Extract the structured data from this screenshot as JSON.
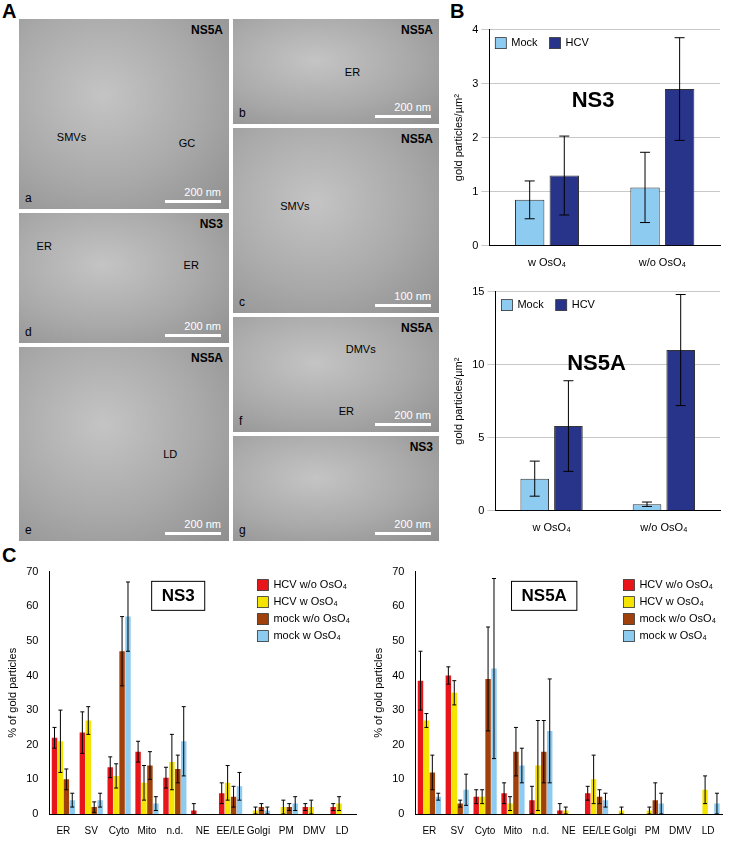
{
  "panel_labels": [
    "A",
    "B",
    "C"
  ],
  "panel_a": {
    "images": [
      {
        "letter": "a",
        "protein": "NS5A",
        "labels": [
          "SMVs",
          "GC"
        ],
        "scale_bar": "200 nm"
      },
      {
        "letter": "b",
        "protein": "NS5A",
        "labels": [
          "ER"
        ],
        "scale_bar": "200 nm"
      },
      {
        "letter": "c",
        "protein": "NS5A",
        "labels": [
          "SMVs"
        ],
        "scale_bar": "100 nm"
      },
      {
        "letter": "d",
        "protein": "NS3",
        "labels": [
          "ER",
          "ER"
        ],
        "scale_bar": "200 nm"
      },
      {
        "letter": "e",
        "protein": "NS5A",
        "labels": [
          "LD"
        ],
        "scale_bar": "200 nm"
      },
      {
        "letter": "f",
        "protein": "NS5A",
        "labels": [
          "DMVs",
          "ER"
        ],
        "scale_bar": "200 nm"
      },
      {
        "letter": "g",
        "protein": "NS3",
        "labels": [],
        "scale_bar": "200 nm"
      }
    ]
  },
  "chart_data": [
    {
      "type": "bar",
      "title": "NS3",
      "y_label": "gold particles/µm²",
      "categories": [
        "w OsO₄",
        "w/o OsO₄"
      ],
      "series": [
        {
          "name": "Mock",
          "color": "#8ecbf0",
          "values": [
            0.85,
            1.08
          ],
          "error": [
            0.35,
            0.65
          ]
        },
        {
          "name": "HCV",
          "color": "#28348a",
          "values": [
            1.3,
            2.9
          ],
          "error": [
            0.73,
            0.95
          ]
        }
      ],
      "ylim": [
        0,
        4
      ],
      "yticks": [
        0,
        1,
        2,
        3,
        4
      ],
      "grid": true,
      "legend": "upper left"
    },
    {
      "type": "bar",
      "title": "NS5A",
      "y_label": "gold particles/µm²",
      "categories": [
        "w OsO₄",
        "w/o OsO₄"
      ],
      "series": [
        {
          "name": "Mock",
          "color": "#8ecbf0",
          "values": [
            2.2,
            0.45
          ],
          "error": [
            1.2,
            0.15
          ]
        },
        {
          "name": "HCV",
          "color": "#28348a",
          "values": [
            5.8,
            11
          ],
          "error": [
            3.1,
            3.8
          ]
        }
      ],
      "ylim": [
        0,
        15
      ],
      "yticks": [
        0,
        5,
        10,
        15
      ],
      "grid": true,
      "legend": "upper left"
    },
    {
      "type": "bar",
      "title": "NS3",
      "y_label": "% of gold particles",
      "categories": [
        "ER",
        "SV",
        "Cyto",
        "Mito",
        "n.d.",
        "NE",
        "EE/LE",
        "Golgi",
        "PM",
        "DMV",
        "LD"
      ],
      "series": [
        {
          "name": "HCV w/o OsO₄",
          "color": "#e8161b",
          "values": [
            22,
            23.5,
            13.5,
            18,
            10.5,
            1,
            6,
            0,
            0,
            2,
            2
          ],
          "error": [
            3,
            6,
            3,
            3,
            3,
            2,
            3,
            0,
            0,
            1,
            1
          ]
        },
        {
          "name": "HCV w OsO₄",
          "color": "#f5e400",
          "values": [
            21,
            27,
            11,
            9,
            15,
            0,
            9,
            1,
            2,
            2,
            3
          ],
          "error": [
            9,
            4,
            3.5,
            5,
            8,
            0,
            5,
            1,
            2,
            2,
            2
          ]
        },
        {
          "name": "mock w/o OsO₄",
          "color": "#a0400a",
          "values": [
            10,
            2,
            47,
            14,
            13,
            0,
            5,
            2,
            2,
            0,
            0
          ],
          "error": [
            3,
            1.5,
            10,
            4,
            4,
            0,
            3,
            1,
            1,
            0,
            0
          ]
        },
        {
          "name": "mock w OsO₄",
          "color": "#8ecbf0",
          "values": [
            4,
            4,
            57,
            3,
            21,
            0,
            8,
            1,
            3,
            0,
            0
          ],
          "error": [
            2,
            2,
            10,
            2,
            10,
            0,
            4,
            1,
            2,
            0,
            0
          ]
        }
      ],
      "ylim": [
        0,
        70
      ],
      "yticks": [
        0,
        10,
        20,
        30,
        40,
        50,
        60,
        70
      ],
      "grid": false,
      "legend": "upper right"
    },
    {
      "type": "bar",
      "title": "NS5A",
      "y_label": "% of gold particles",
      "categories": [
        "ER",
        "SV",
        "Cyto",
        "Mito",
        "n.d.",
        "NE",
        "EE/LE",
        "Golgi",
        "PM",
        "DMV",
        "LD"
      ],
      "series": [
        {
          "name": "HCV w/o OsO₄",
          "color": "#e8161b",
          "values": [
            38.5,
            40,
            5,
            6,
            4,
            1,
            6,
            0,
            0,
            0,
            0
          ],
          "error": [
            8.5,
            2.5,
            2,
            3,
            4,
            2,
            2,
            0,
            0,
            0,
            0
          ]
        },
        {
          "name": "HCV w OsO₄",
          "color": "#f5e400",
          "values": [
            27,
            35,
            5,
            3,
            14,
            1,
            10,
            1,
            1,
            0,
            7
          ],
          "error": [
            2,
            3.5,
            2,
            2,
            13,
            1,
            7,
            1,
            1,
            0,
            4
          ]
        },
        {
          "name": "mock w/o OsO₄",
          "color": "#a0400a",
          "values": [
            12,
            3,
            39,
            18,
            18,
            0,
            5,
            0,
            4,
            0,
            0
          ],
          "error": [
            5,
            1,
            15,
            7,
            9,
            0,
            2,
            0,
            5,
            0,
            0
          ]
        },
        {
          "name": "mock w OsO₄",
          "color": "#8ecbf0",
          "values": [
            5,
            7,
            42,
            14,
            24,
            0,
            4,
            0,
            3,
            0,
            3
          ],
          "error": [
            1,
            4.5,
            26,
            5,
            15,
            0,
            2,
            0,
            3,
            0,
            3
          ]
        }
      ],
      "ylim": [
        0,
        70
      ],
      "yticks": [
        0,
        10,
        20,
        30,
        40,
        50,
        60,
        70
      ],
      "grid": false,
      "legend": "upper right"
    }
  ]
}
